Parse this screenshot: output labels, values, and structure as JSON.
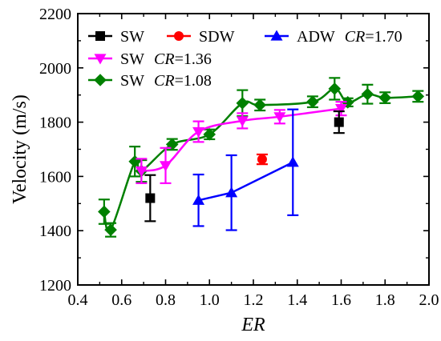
{
  "chart_data": {
    "type": "scatter",
    "xlabel": "ER",
    "ylabel": "Velocity (m/s)",
    "xlim": [
      0.4,
      2.0
    ],
    "ylim": [
      1200,
      2200
    ],
    "x_ticks": [
      "0.4",
      "0.6",
      "0.8",
      "1.0",
      "1.2",
      "1.4",
      "1.6",
      "1.8",
      "2.0"
    ],
    "y_ticks": [
      "1200",
      "1400",
      "1600",
      "1800",
      "2000",
      "2200"
    ],
    "grid": false,
    "legend_position": "top",
    "series": [
      {
        "name": "SW",
        "color": "#000000",
        "marker": "square",
        "line": false,
        "points": [
          {
            "x": 0.73,
            "y": 1520,
            "err": 85
          },
          {
            "x": 1.59,
            "y": 1800,
            "err": 40
          }
        ]
      },
      {
        "name": "SDW",
        "color": "#ff0000",
        "marker": "circle",
        "line": false,
        "points": [
          {
            "x": 1.24,
            "y": 1663,
            "err": 18
          }
        ]
      },
      {
        "name": "ADW",
        "legend_suffix_italic": "CR",
        "legend_suffix": "=1.70",
        "color": "#0000ff",
        "marker": "triangle-up",
        "line": "segments",
        "points": [
          {
            "x": 0.95,
            "y": 1512,
            "err": 95
          },
          {
            "x": 1.1,
            "y": 1540,
            "err": 138
          },
          {
            "x": 1.38,
            "y": 1652,
            "err": 195
          }
        ]
      },
      {
        "name": "SW",
        "legend_suffix_italic": "CR",
        "legend_suffix": "=1.36",
        "color": "#ff00ff",
        "marker": "triangle-down",
        "line": "smooth",
        "points": [
          {
            "x": 0.69,
            "y": 1620,
            "err": 45
          },
          {
            "x": 0.8,
            "y": 1640,
            "err": 65
          },
          {
            "x": 0.95,
            "y": 1765,
            "err": 38
          },
          {
            "x": 1.15,
            "y": 1805,
            "err": 28
          },
          {
            "x": 1.32,
            "y": 1820,
            "err": 25
          },
          {
            "x": 1.6,
            "y": 1850,
            "err": 25
          }
        ]
      },
      {
        "name": "SW",
        "legend_suffix_italic": "CR",
        "legend_suffix": "=1.08",
        "color": "#008000",
        "marker": "diamond",
        "line": "smooth",
        "points": [
          {
            "x": 0.52,
            "y": 1470,
            "err": 45
          },
          {
            "x": 0.55,
            "y": 1403,
            "err": 25
          },
          {
            "x": 0.66,
            "y": 1655,
            "err": 55
          },
          {
            "x": 0.69,
            "y": 1620,
            "err": 40
          },
          {
            "x": 0.83,
            "y": 1718,
            "err": 20
          },
          {
            "x": 1.0,
            "y": 1755,
            "err": 18
          },
          {
            "x": 1.15,
            "y": 1870,
            "err": 48
          },
          {
            "x": 1.23,
            "y": 1863,
            "err": 20
          },
          {
            "x": 1.47,
            "y": 1875,
            "err": 20
          },
          {
            "x": 1.57,
            "y": 1923,
            "err": 40
          },
          {
            "x": 1.63,
            "y": 1873,
            "err": 15
          },
          {
            "x": 1.72,
            "y": 1903,
            "err": 35
          },
          {
            "x": 1.8,
            "y": 1890,
            "err": 20
          },
          {
            "x": 1.95,
            "y": 1895,
            "err": 20
          }
        ]
      }
    ]
  }
}
